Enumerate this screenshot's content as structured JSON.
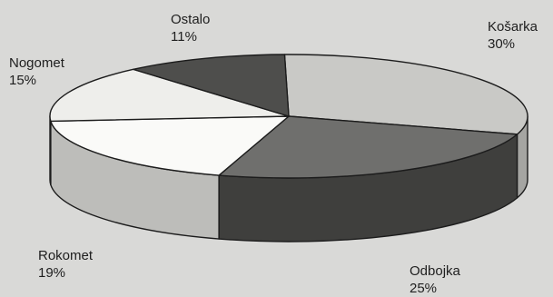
{
  "chart_data": {
    "type": "pie",
    "style": "3d",
    "title": "",
    "slices": [
      {
        "label": "Košarka",
        "value": 30,
        "value_text": "30%",
        "color": "#c9c9c6",
        "side": "#a5a5a2"
      },
      {
        "label": "Odbojka",
        "value": 25,
        "value_text": "25%",
        "color": "#6f6f6d",
        "side": "#3f3f3d"
      },
      {
        "label": "Rokomet",
        "value": 19,
        "value_text": "19%",
        "color": "#fafaf8",
        "side": "#bdbdba"
      },
      {
        "label": "Nogomet",
        "value": 15,
        "value_text": "15%",
        "color": "#eeeeeb",
        "side": "#c8c8c5"
      },
      {
        "label": "Ostalo",
        "value": 11,
        "value_text": "11%",
        "color": "#4e4e4c",
        "side": "#353533"
      }
    ]
  }
}
